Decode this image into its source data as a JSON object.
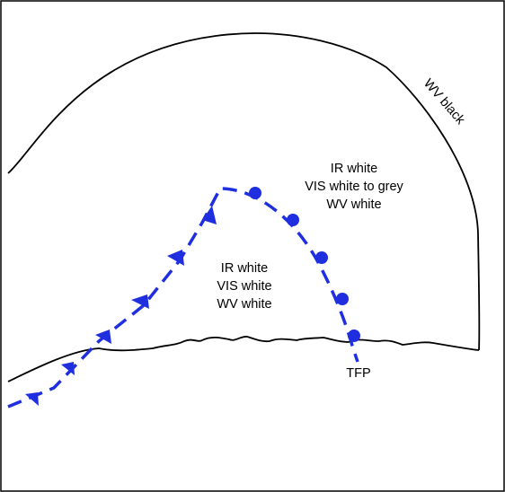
{
  "labels": {
    "wv_black": "WV black",
    "upper_region": {
      "line1": "IR white",
      "line2": "VIS white to grey",
      "line3": "WV white"
    },
    "inner_region": {
      "line1": "IR white",
      "line2": "VIS white",
      "line3": "WV white"
    },
    "tfp": "TFP"
  },
  "colors": {
    "front": "#1f2fe0",
    "outline": "#000000",
    "background": "#ffffff"
  },
  "symbols": {
    "cold_front_marker": "triangle",
    "warm_front_marker": "semicircle"
  }
}
